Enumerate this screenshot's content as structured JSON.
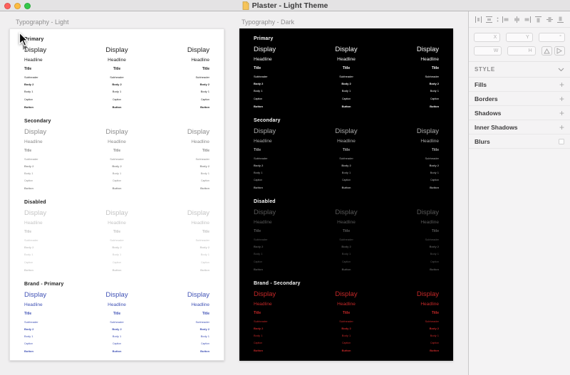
{
  "window": {
    "title": "Plaster - Light Theme"
  },
  "titlebar": {
    "traffic_lights": [
      "close",
      "minimize",
      "zoom"
    ],
    "doc_icon": "document-icon"
  },
  "canvas": {
    "type_rows": [
      "Display",
      "Headline",
      "Title",
      "Subheader",
      "Body 2",
      "Body 1",
      "Caption",
      "Button"
    ],
    "artboards": [
      {
        "label": "Typography - Light",
        "theme": "light",
        "bg": "#ffffff",
        "sections": [
          {
            "name": "Primary",
            "header_color": "#1d1d1d",
            "text_color": "#1f1f1f"
          },
          {
            "name": "Secondary",
            "header_color": "#1d1d1d",
            "text_color": "#8d8d8d"
          },
          {
            "name": "Disabled",
            "header_color": "#1d1d1d",
            "text_color": "#c4c4c4"
          },
          {
            "name": "Brand - Primary",
            "header_color": "#1d1d1d",
            "text_color": "#3f51b5"
          }
        ]
      },
      {
        "label": "Typography - Dark",
        "theme": "dark",
        "bg": "#000000",
        "sections": [
          {
            "name": "Primary",
            "header_color": "#fafafa",
            "text_color": "#f5f5f5"
          },
          {
            "name": "Secondary",
            "header_color": "#fafafa",
            "text_color": "#ababab"
          },
          {
            "name": "Disabled",
            "header_color": "#fafafa",
            "text_color": "#585858"
          },
          {
            "name": "Brand - Secondary",
            "header_color": "#fafafa",
            "text_color": "#c62828"
          }
        ]
      }
    ]
  },
  "inspector": {
    "align_icons": [
      "distribute-horizontally-icon",
      "distribute-vertically-icon",
      "options-dots-icon",
      "align-left-icon",
      "align-center-horizontal-icon",
      "align-right-icon",
      "align-top-icon",
      "align-middle-vertical-icon",
      "align-bottom-icon"
    ],
    "fields": {
      "x_label": "X",
      "y_label": "Y",
      "rotation_label": "°",
      "w_label": "W",
      "h_label": "H"
    },
    "flip_buttons": [
      "flip-vertical-icon",
      "flip-horizontal-icon"
    ],
    "style_header": "STYLE",
    "style_sections": [
      {
        "label": "Fills",
        "control": "add"
      },
      {
        "label": "Borders",
        "control": "add"
      },
      {
        "label": "Shadows",
        "control": "add"
      },
      {
        "label": "Inner Shadows",
        "control": "add"
      },
      {
        "label": "Blurs",
        "control": "checkbox"
      }
    ]
  },
  "colors": {
    "brand_blue": "#3f51b5",
    "brand_red": "#c62828",
    "canvas_bg": "#f0eff0",
    "traffic_red": "#ff605c",
    "traffic_yellow": "#fdbc40",
    "traffic_green": "#34c749"
  }
}
